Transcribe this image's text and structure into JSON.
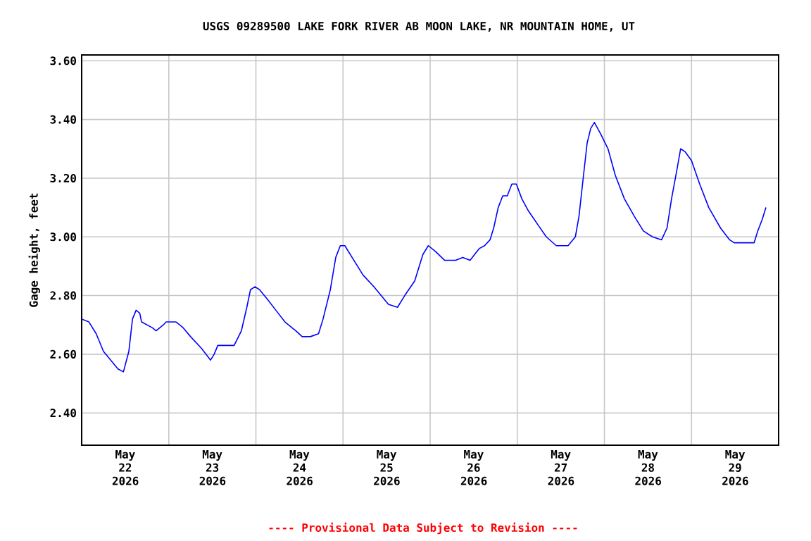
{
  "chart_data": {
    "type": "line",
    "title": "USGS 09289500 LAKE FORK RIVER AB MOON LAKE, NR MOUNTAIN HOME, UT",
    "ylabel": "Gage height, feet",
    "annotations": [
      "---- Provisional Data Subject to Revision ----"
    ],
    "grid": true,
    "marker": "none",
    "line_style": "solid",
    "xlim": [
      "2026-05-22T00:00",
      "2026-05-30T00:00"
    ],
    "ylim": [
      2.29,
      3.62
    ],
    "xticks": [
      {
        "value": "2026-05-22T12:00",
        "label": "May 22 2026"
      },
      {
        "value": "2026-05-23T00:00",
        "label": null
      },
      {
        "value": "2026-05-23T12:00",
        "label": "May 23 2026"
      },
      {
        "value": "2026-05-24T00:00",
        "label": null
      },
      {
        "value": "2026-05-24T12:00",
        "label": "May 24 2026"
      },
      {
        "value": "2026-05-25T00:00",
        "label": null
      },
      {
        "value": "2026-05-25T12:00",
        "label": "May 25 2026"
      },
      {
        "value": "2026-05-26T00:00",
        "label": null
      },
      {
        "value": "2026-05-26T12:00",
        "label": "May 26 2026"
      },
      {
        "value": "2026-05-27T00:00",
        "label": null
      },
      {
        "value": "2026-05-27T12:00",
        "label": "May 27 2026"
      },
      {
        "value": "2026-05-28T00:00",
        "label": null
      },
      {
        "value": "2026-05-28T12:00",
        "label": "May 28 2026"
      },
      {
        "value": "2026-05-29T00:00",
        "label": null
      },
      {
        "value": "2026-05-29T12:00",
        "label": "May 29 2026"
      }
    ],
    "yticks": [
      {
        "value": 2.4,
        "label": "2.40"
      },
      {
        "value": 2.6,
        "label": "2.60"
      },
      {
        "value": 2.8,
        "label": "2.80"
      },
      {
        "value": 3.0,
        "label": "3.00"
      },
      {
        "value": 3.2,
        "label": "3.20"
      },
      {
        "value": 3.4,
        "label": "3.40"
      },
      {
        "value": 3.6,
        "label": "3.60"
      }
    ],
    "series": [
      {
        "color": "#0000ff",
        "x": [
          "2026-05-22T00:00",
          "2026-05-22T02:00",
          "2026-05-22T04:00",
          "2026-05-22T06:00",
          "2026-05-22T08:00",
          "2026-05-22T10:00",
          "2026-05-22T11:30",
          "2026-05-22T13:00",
          "2026-05-22T14:00",
          "2026-05-22T15:00",
          "2026-05-22T16:00",
          "2026-05-22T16:30",
          "2026-05-22T19:30",
          "2026-05-22T20:30",
          "2026-05-22T22:30",
          "2026-05-22T23:15",
          "2026-05-23T02:00",
          "2026-05-23T04:00",
          "2026-05-23T06:00",
          "2026-05-23T09:00",
          "2026-05-23T11:30",
          "2026-05-23T12:30",
          "2026-05-23T13:30",
          "2026-05-23T18:00",
          "2026-05-23T20:00",
          "2026-05-23T21:30",
          "2026-05-23T22:30",
          "2026-05-23T23:45",
          "2026-05-24T01:00",
          "2026-05-24T03:00",
          "2026-05-24T05:30",
          "2026-05-24T08:00",
          "2026-05-24T11:00",
          "2026-05-24T12:45",
          "2026-05-24T15:00",
          "2026-05-24T17:15",
          "2026-05-24T18:30",
          "2026-05-24T20:30",
          "2026-05-24T22:00",
          "2026-05-24T23:15",
          "2026-05-25T00:30",
          "2026-05-25T03:00",
          "2026-05-25T05:30",
          "2026-05-25T08:30",
          "2026-05-25T12:30",
          "2026-05-25T15:00",
          "2026-05-25T17:00",
          "2026-05-25T19:45",
          "2026-05-25T22:00",
          "2026-05-25T23:30",
          "2026-05-26T01:30",
          "2026-05-26T04:00",
          "2026-05-26T07:00",
          "2026-05-26T09:00",
          "2026-05-26T11:00",
          "2026-05-26T13:30",
          "2026-05-26T15:00",
          "2026-05-26T16:30",
          "2026-05-26T17:30",
          "2026-05-26T18:45",
          "2026-05-26T20:00",
          "2026-05-26T21:15",
          "2026-05-26T22:30",
          "2026-05-26T23:45",
          "2026-05-27T01:15",
          "2026-05-27T03:00",
          "2026-05-27T05:45",
          "2026-05-27T08:00",
          "2026-05-27T10:45",
          "2026-05-27T14:00",
          "2026-05-27T16:00",
          "2026-05-27T17:00",
          "2026-05-27T18:15",
          "2026-05-27T19:15",
          "2026-05-27T20:15",
          "2026-05-27T21:15",
          "2026-05-27T23:00",
          "2026-05-28T01:00",
          "2026-05-28T03:00",
          "2026-05-28T05:30",
          "2026-05-28T08:15",
          "2026-05-28T10:45",
          "2026-05-28T13:15",
          "2026-05-28T15:45",
          "2026-05-28T17:15",
          "2026-05-28T18:30",
          "2026-05-28T20:00",
          "2026-05-28T21:00",
          "2026-05-28T22:15",
          "2026-05-29T00:00",
          "2026-05-29T02:15",
          "2026-05-29T04:45",
          "2026-05-29T08:00",
          "2026-05-29T10:30",
          "2026-05-29T11:45",
          "2026-05-29T15:45",
          "2026-05-29T17:15",
          "2026-05-29T18:15",
          "2026-05-29T19:30",
          "2026-05-29T20:30"
        ],
        "values": [
          2.72,
          2.71,
          2.67,
          2.61,
          2.58,
          2.55,
          2.54,
          2.61,
          2.72,
          2.75,
          2.74,
          2.71,
          2.69,
          2.68,
          2.7,
          2.71,
          2.71,
          2.69,
          2.66,
          2.62,
          2.58,
          2.6,
          2.63,
          2.63,
          2.68,
          2.76,
          2.82,
          2.83,
          2.82,
          2.79,
          2.75,
          2.71,
          2.68,
          2.66,
          2.66,
          2.67,
          2.72,
          2.82,
          2.93,
          2.97,
          2.97,
          2.92,
          2.87,
          2.83,
          2.77,
          2.76,
          2.8,
          2.85,
          2.94,
          2.97,
          2.95,
          2.92,
          2.92,
          2.93,
          2.92,
          2.96,
          2.97,
          2.99,
          3.03,
          3.1,
          3.14,
          3.14,
          3.18,
          3.18,
          3.13,
          3.09,
          3.04,
          3.0,
          2.97,
          2.97,
          3.0,
          3.07,
          3.21,
          3.32,
          3.37,
          3.39,
          3.35,
          3.3,
          3.21,
          3.13,
          3.07,
          3.02,
          3.0,
          2.99,
          3.03,
          3.13,
          3.23,
          3.3,
          3.29,
          3.26,
          3.18,
          3.1,
          3.03,
          2.99,
          2.98,
          2.98,
          2.98,
          3.02,
          3.06,
          3.1
        ]
      }
    ]
  }
}
